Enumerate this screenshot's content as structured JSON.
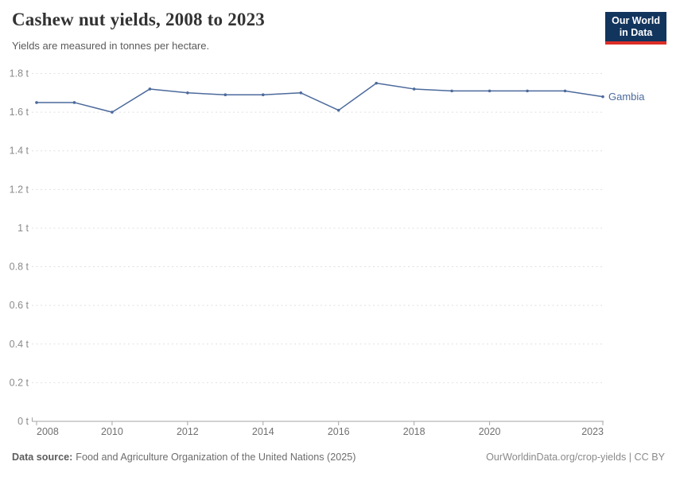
{
  "header": {
    "title": "Cashew nut yields, 2008 to 2023",
    "subtitle": "Yields are measured in tonnes per hectare."
  },
  "logo": {
    "line1": "Our World",
    "line2": "in Data",
    "bg_color": "#12355e",
    "accent_color": "#dc2e27"
  },
  "chart_data": {
    "type": "line",
    "title": "Cashew nut yields, 2008 to 2023",
    "unit": "tonnes per hectare",
    "x": [
      2008,
      2009,
      2010,
      2011,
      2012,
      2013,
      2014,
      2015,
      2016,
      2017,
      2018,
      2019,
      2020,
      2021,
      2022,
      2023
    ],
    "series": [
      {
        "name": "Gambia",
        "color": "#4c6a9c",
        "values": [
          1.65,
          1.65,
          1.6,
          1.72,
          1.7,
          1.69,
          1.69,
          1.7,
          1.61,
          1.75,
          1.72,
          1.71,
          1.71,
          1.71,
          1.71,
          1.68
        ]
      }
    ],
    "ylim": [
      0,
      1.8
    ],
    "yticks": [
      {
        "value": 0,
        "label": "0 t"
      },
      {
        "value": 0.2,
        "label": "0.2 t"
      },
      {
        "value": 0.4,
        "label": "0.4 t"
      },
      {
        "value": 0.6,
        "label": "0.6 t"
      },
      {
        "value": 0.8,
        "label": "0.8 t"
      },
      {
        "value": 1,
        "label": "1 t"
      },
      {
        "value": 1.2,
        "label": "1.2 t"
      },
      {
        "value": 1.4,
        "label": "1.4 t"
      },
      {
        "value": 1.6,
        "label": "1.6 t"
      },
      {
        "value": 1.8,
        "label": "1.8 t"
      }
    ],
    "xticks": [
      {
        "value": 2008,
        "label": "2008"
      },
      {
        "value": 2010,
        "label": "2010"
      },
      {
        "value": 2012,
        "label": "2012"
      },
      {
        "value": 2014,
        "label": "2014"
      },
      {
        "value": 2016,
        "label": "2016"
      },
      {
        "value": 2018,
        "label": "2018"
      },
      {
        "value": 2020,
        "label": "2020"
      },
      {
        "value": 2023,
        "label": "2023"
      }
    ],
    "grid": {
      "horizontal": true,
      "style": "dashed"
    },
    "legend": "end-of-line-label",
    "colors": {
      "gridline": "#e0e0e0",
      "axis": "#a5a5a5",
      "y_label": "#8b8b8b",
      "x_label": "#707070"
    }
  },
  "footer": {
    "source_label": "Data source:",
    "source_text": "Food and Agriculture Organization of the United Nations (2025)",
    "license_text": "OurWorldinData.org/crop-yields | CC BY"
  }
}
